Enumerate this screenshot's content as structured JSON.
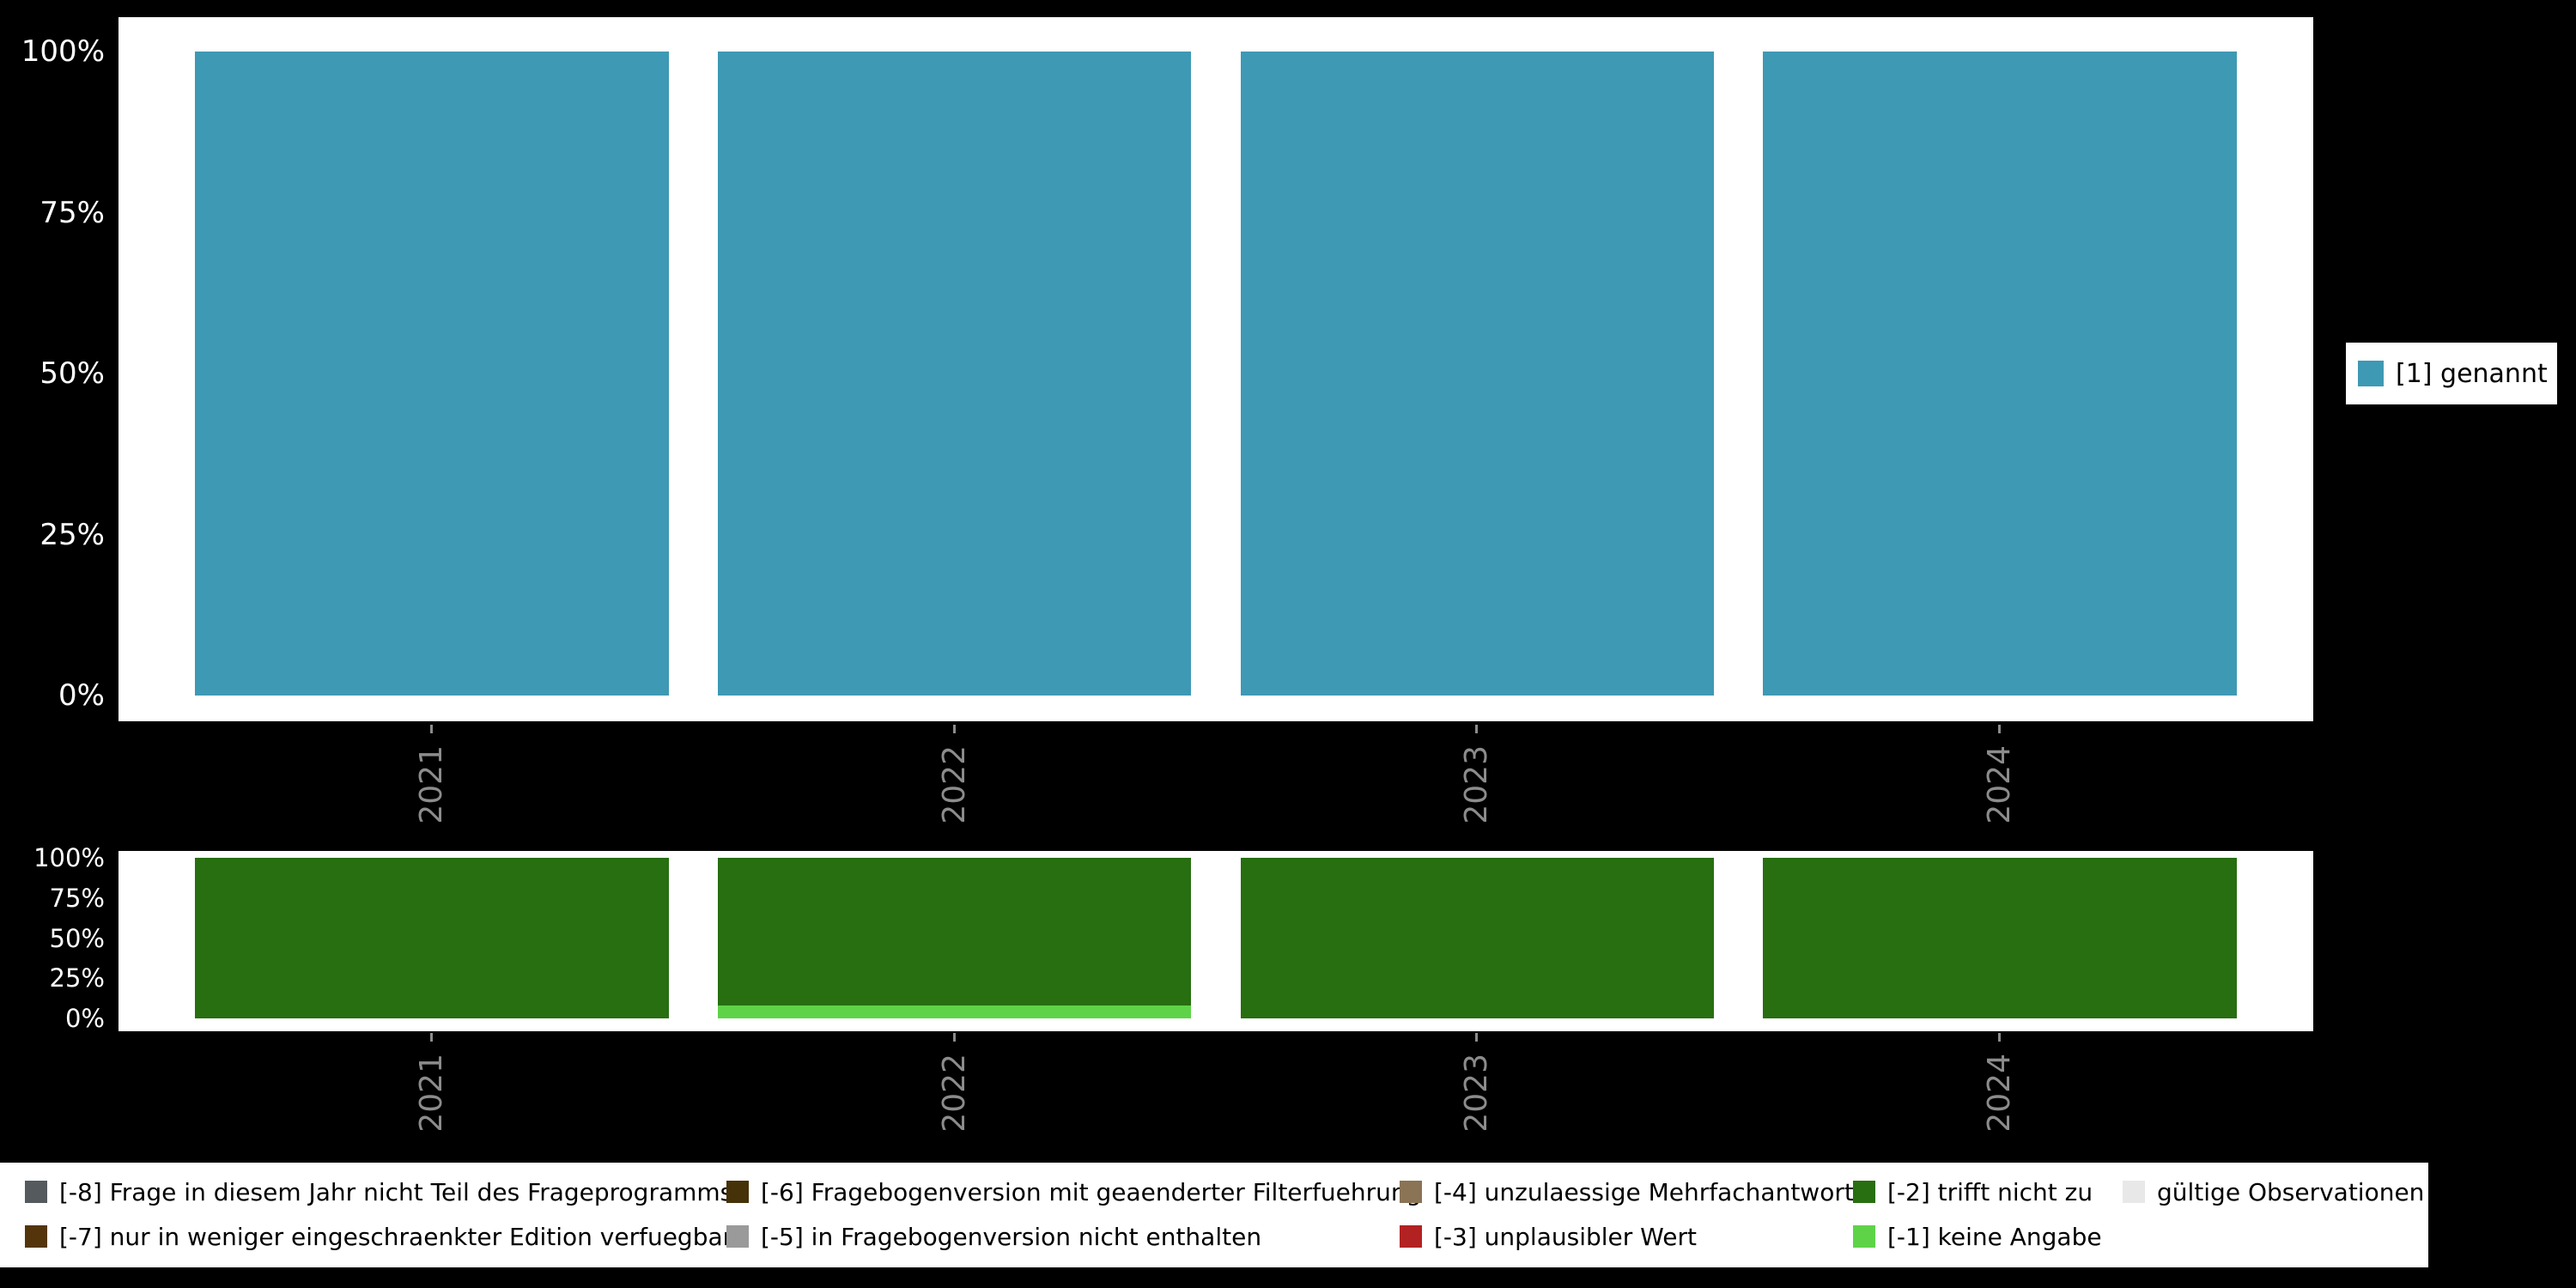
{
  "colors": {
    "background": "#000000",
    "panel_background": "#ffffff",
    "y_axis_text": "#ffffff",
    "x_axis_text": "#8c8c8c",
    "legend_text": "#000000",
    "bar_teal": "#3e99b4",
    "bar_dark_green": "#276f10",
    "bar_light_green": "#5fd348"
  },
  "chart_data": [
    {
      "type": "bar",
      "panel": "top",
      "title": "",
      "categories": [
        "2021",
        "2022",
        "2023",
        "2024"
      ],
      "series": [
        {
          "name": "[1] genannt",
          "color": "#3e99b4",
          "values": [
            100,
            100,
            100,
            100
          ]
        }
      ],
      "xlabel": "",
      "ylabel": "",
      "ytick_labels": [
        "0%",
        "25%",
        "50%",
        "75%",
        "100%"
      ],
      "ylim": [
        0,
        100
      ],
      "grid": false,
      "legend_position": "right"
    },
    {
      "type": "bar",
      "panel": "bottom",
      "stacked": true,
      "title": "",
      "categories": [
        "2021",
        "2022",
        "2023",
        "2024"
      ],
      "series": [
        {
          "name": "[-1] keine Angabe",
          "color": "#5fd348",
          "values": [
            0,
            8,
            0,
            0
          ]
        },
        {
          "name": "[-2] trifft nicht zu",
          "color": "#276f10",
          "values": [
            100,
            92,
            100,
            100
          ]
        }
      ],
      "xlabel": "",
      "ylabel": "",
      "ytick_labels": [
        "0%",
        "25%",
        "50%",
        "75%",
        "100%"
      ],
      "ylim": [
        0,
        100
      ],
      "grid": false,
      "legend_position": "bottom"
    }
  ],
  "legend_right": {
    "items": [
      {
        "label": "[1] genannt",
        "color": "#3e99b4"
      }
    ]
  },
  "legend_bottom": {
    "columns": [
      {
        "items": [
          {
            "label": "[-8] Frage in diesem Jahr nicht Teil des Frageprogramms",
            "color": "#545a5e"
          },
          {
            "label": "[-7] nur in weniger eingeschraenkter Edition verfuegbar",
            "color": "#54350b"
          }
        ]
      },
      {
        "items": [
          {
            "label": "[-6] Fragebogenversion mit geaenderter Filterfuehrung",
            "color": "#463209"
          },
          {
            "label": "[-5] in Fragebogenversion nicht enthalten",
            "color": "#9a9a9a"
          }
        ]
      },
      {
        "items": [
          {
            "label": "[-4] unzulaessige Mehrfachantwort",
            "color": "#8b7355"
          },
          {
            "label": "[-3] unplausibler Wert",
            "color": "#b22222"
          }
        ]
      },
      {
        "items": [
          {
            "label": "[-2] trifft nicht zu",
            "color": "#276f10"
          },
          {
            "label": "[-1] keine Angabe",
            "color": "#5fd348"
          }
        ]
      },
      {
        "items": [
          {
            "label": "gültige Observationen",
            "color": "#e8e8e8"
          }
        ]
      }
    ]
  }
}
